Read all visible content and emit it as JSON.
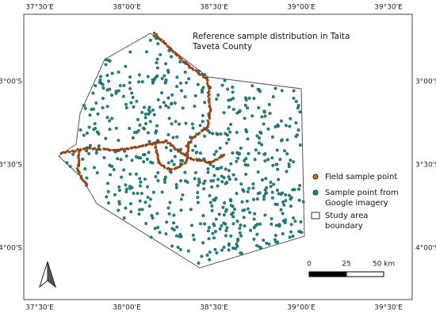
{
  "title": "Reference sample distribution in Taita Taveta County",
  "lon_ticks": [
    "37°30'E",
    "38°00'E",
    "38°30'E",
    "39°00'E",
    "39°30'E"
  ],
  "lat_ticks": [
    "3°00'S",
    "3°30'S",
    "4°00'S"
  ],
  "legend": [
    {
      "label": "Field sample point"
    },
    {
      "label": "Sample point from Google imagery"
    },
    {
      "label": "Study area boundary"
    }
  ],
  "scale_bar": {
    "labels": [
      "0",
      "25",
      "50 km"
    ]
  }
}
